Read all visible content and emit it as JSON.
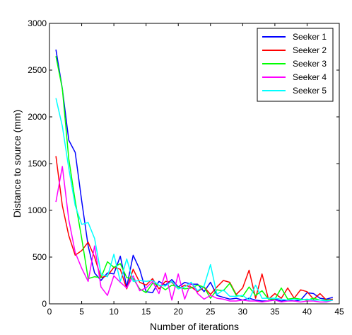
{
  "chart_data": {
    "type": "line",
    "xlabel": "Number of iterations",
    "ylabel": "Distance to source (mm)",
    "xlim": [
      0,
      45
    ],
    "ylim": [
      0,
      3000
    ],
    "xticks": [
      0,
      5,
      10,
      15,
      20,
      25,
      30,
      35,
      40,
      45
    ],
    "yticks": [
      0,
      500,
      1000,
      1500,
      2000,
      2500,
      3000
    ],
    "grid": false,
    "legend_position": "top-right",
    "series": [
      {
        "name": "Seeker 1",
        "color": "#0000ff",
        "values": [
          [
            1,
            2720
          ],
          [
            2,
            2300
          ],
          [
            3,
            1750
          ],
          [
            4,
            1620
          ],
          [
            5,
            1100
          ],
          [
            6,
            620
          ],
          [
            7,
            330
          ],
          [
            8,
            250
          ],
          [
            9,
            330
          ],
          [
            10,
            320
          ],
          [
            11,
            510
          ],
          [
            12,
            180
          ],
          [
            13,
            520
          ],
          [
            14,
            370
          ],
          [
            15,
            130
          ],
          [
            16,
            120
          ],
          [
            17,
            240
          ],
          [
            18,
            200
          ],
          [
            19,
            260
          ],
          [
            20,
            180
          ],
          [
            21,
            230
          ],
          [
            22,
            210
          ],
          [
            23,
            210
          ],
          [
            24,
            130
          ],
          [
            25,
            230
          ],
          [
            26,
            90
          ],
          [
            27,
            70
          ],
          [
            28,
            50
          ],
          [
            29,
            60
          ],
          [
            30,
            40
          ],
          [
            31,
            60
          ],
          [
            32,
            40
          ],
          [
            33,
            30
          ],
          [
            34,
            30
          ],
          [
            35,
            50
          ],
          [
            36,
            30
          ],
          [
            37,
            40
          ],
          [
            38,
            30
          ],
          [
            39,
            40
          ],
          [
            40,
            120
          ],
          [
            41,
            110
          ],
          [
            42,
            60
          ],
          [
            43,
            50
          ],
          [
            44,
            70
          ]
        ]
      },
      {
        "name": "Seeker 2",
        "color": "#ff0000",
        "values": [
          [
            1,
            1580
          ],
          [
            2,
            1050
          ],
          [
            3,
            730
          ],
          [
            4,
            520
          ],
          [
            5,
            570
          ],
          [
            6,
            660
          ],
          [
            7,
            500
          ],
          [
            8,
            280
          ],
          [
            9,
            300
          ],
          [
            10,
            390
          ],
          [
            11,
            370
          ],
          [
            12,
            160
          ],
          [
            13,
            370
          ],
          [
            14,
            230
          ],
          [
            15,
            200
          ],
          [
            16,
            270
          ],
          [
            17,
            160
          ],
          [
            18,
            240
          ],
          [
            19,
            230
          ],
          [
            20,
            160
          ],
          [
            21,
            200
          ],
          [
            22,
            180
          ],
          [
            23,
            130
          ],
          [
            24,
            180
          ],
          [
            25,
            100
          ],
          [
            26,
            180
          ],
          [
            27,
            250
          ],
          [
            28,
            230
          ],
          [
            29,
            100
          ],
          [
            30,
            170
          ],
          [
            31,
            360
          ],
          [
            32,
            60
          ],
          [
            33,
            320
          ],
          [
            34,
            50
          ],
          [
            35,
            110
          ],
          [
            36,
            60
          ],
          [
            37,
            170
          ],
          [
            38,
            60
          ],
          [
            39,
            150
          ],
          [
            40,
            130
          ],
          [
            41,
            50
          ],
          [
            42,
            110
          ],
          [
            43,
            40
          ],
          [
            44,
            50
          ]
        ]
      },
      {
        "name": "Seeker 3",
        "color": "#00ff00",
        "values": [
          [
            1,
            2650
          ],
          [
            2,
            2300
          ],
          [
            3,
            1550
          ],
          [
            4,
            1100
          ],
          [
            5,
            700
          ],
          [
            6,
            270
          ],
          [
            7,
            290
          ],
          [
            8,
            280
          ],
          [
            9,
            450
          ],
          [
            10,
            390
          ],
          [
            11,
            430
          ],
          [
            12,
            280
          ],
          [
            13,
            270
          ],
          [
            14,
            160
          ],
          [
            15,
            120
          ],
          [
            16,
            220
          ],
          [
            17,
            200
          ],
          [
            18,
            150
          ],
          [
            19,
            200
          ],
          [
            20,
            180
          ],
          [
            21,
            160
          ],
          [
            22,
            170
          ],
          [
            23,
            200
          ],
          [
            24,
            180
          ],
          [
            25,
            60
          ],
          [
            26,
            150
          ],
          [
            27,
            140
          ],
          [
            28,
            220
          ],
          [
            29,
            90
          ],
          [
            30,
            80
          ],
          [
            31,
            180
          ],
          [
            32,
            90
          ],
          [
            33,
            140
          ],
          [
            34,
            50
          ],
          [
            35,
            50
          ],
          [
            36,
            170
          ],
          [
            37,
            50
          ],
          [
            38,
            60
          ],
          [
            39,
            50
          ],
          [
            40,
            40
          ],
          [
            41,
            60
          ],
          [
            42,
            40
          ],
          [
            43,
            40
          ],
          [
            44,
            40
          ]
        ]
      },
      {
        "name": "Seeker 4",
        "color": "#ff00ff",
        "values": [
          [
            1,
            1090
          ],
          [
            2,
            1470
          ],
          [
            3,
            900
          ],
          [
            4,
            550
          ],
          [
            5,
            380
          ],
          [
            6,
            240
          ],
          [
            7,
            620
          ],
          [
            8,
            180
          ],
          [
            9,
            90
          ],
          [
            10,
            300
          ],
          [
            11,
            230
          ],
          [
            12,
            170
          ],
          [
            13,
            300
          ],
          [
            14,
            140
          ],
          [
            15,
            170
          ],
          [
            16,
            240
          ],
          [
            17,
            110
          ],
          [
            18,
            330
          ],
          [
            19,
            40
          ],
          [
            20,
            320
          ],
          [
            21,
            50
          ],
          [
            22,
            230
          ],
          [
            23,
            110
          ],
          [
            24,
            50
          ],
          [
            25,
            90
          ],
          [
            26,
            60
          ],
          [
            27,
            50
          ],
          [
            28,
            30
          ],
          [
            29,
            30
          ],
          [
            30,
            40
          ],
          [
            31,
            30
          ],
          [
            32,
            30
          ],
          [
            33,
            20
          ],
          [
            34,
            30
          ],
          [
            35,
            40
          ],
          [
            36,
            20
          ],
          [
            37,
            30
          ],
          [
            38,
            30
          ],
          [
            39,
            20
          ],
          [
            40,
            30
          ],
          [
            41,
            30
          ],
          [
            42,
            20
          ],
          [
            43,
            20
          ],
          [
            44,
            40
          ]
        ]
      },
      {
        "name": "Seeker 5",
        "color": "#00ffff",
        "values": [
          [
            1,
            2200
          ],
          [
            2,
            1900
          ],
          [
            3,
            1450
          ],
          [
            4,
            1050
          ],
          [
            5,
            850
          ],
          [
            6,
            870
          ],
          [
            7,
            700
          ],
          [
            8,
            320
          ],
          [
            9,
            290
          ],
          [
            10,
            530
          ],
          [
            11,
            240
          ],
          [
            12,
            480
          ],
          [
            13,
            240
          ],
          [
            14,
            250
          ],
          [
            15,
            240
          ],
          [
            16,
            250
          ],
          [
            17,
            200
          ],
          [
            18,
            190
          ],
          [
            19,
            240
          ],
          [
            20,
            160
          ],
          [
            21,
            180
          ],
          [
            22,
            230
          ],
          [
            23,
            140
          ],
          [
            24,
            190
          ],
          [
            25,
            420
          ],
          [
            26,
            100
          ],
          [
            27,
            150
          ],
          [
            28,
            80
          ],
          [
            29,
            80
          ],
          [
            30,
            90
          ],
          [
            31,
            40
          ],
          [
            32,
            200
          ],
          [
            33,
            60
          ],
          [
            34,
            60
          ],
          [
            35,
            60
          ],
          [
            36,
            50
          ],
          [
            37,
            40
          ],
          [
            38,
            50
          ],
          [
            39,
            40
          ],
          [
            40,
            50
          ],
          [
            41,
            40
          ],
          [
            42,
            40
          ],
          [
            43,
            30
          ],
          [
            44,
            40
          ]
        ]
      }
    ]
  }
}
